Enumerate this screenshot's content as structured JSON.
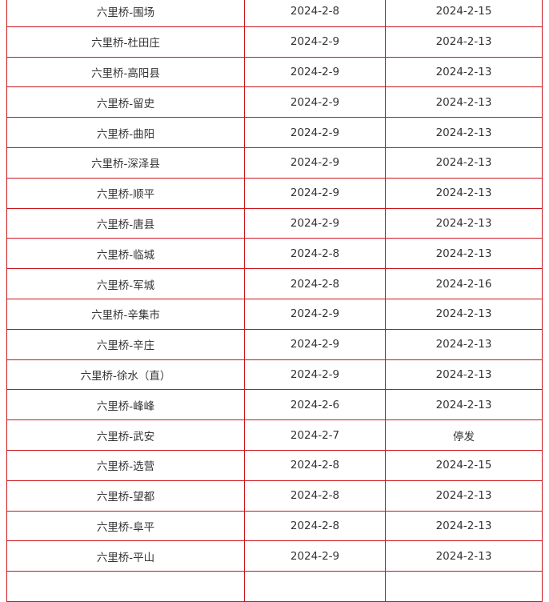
{
  "rows": [
    {
      "route": "六里桥-围场",
      "stop_date": "2024-2-8",
      "resume_date": "2024-2-15"
    },
    {
      "route": "六里桥-杜田庄",
      "stop_date": "2024-2-9",
      "resume_date": "2024-2-13"
    },
    {
      "route": "六里桥-高阳县",
      "stop_date": "2024-2-9",
      "resume_date": "2024-2-13"
    },
    {
      "route": "六里桥-留史",
      "stop_date": "2024-2-9",
      "resume_date": "2024-2-13"
    },
    {
      "route": "六里桥-曲阳",
      "stop_date": "2024-2-9",
      "resume_date": "2024-2-13"
    },
    {
      "route": "六里桥-深泽县",
      "stop_date": "2024-2-9",
      "resume_date": "2024-2-13"
    },
    {
      "route": "六里桥-顺平",
      "stop_date": "2024-2-9",
      "resume_date": "2024-2-13"
    },
    {
      "route": "六里桥-唐县",
      "stop_date": "2024-2-9",
      "resume_date": "2024-2-13"
    },
    {
      "route": "六里桥-临城",
      "stop_date": "2024-2-8",
      "resume_date": "2024-2-13"
    },
    {
      "route": "六里桥-军城",
      "stop_date": "2024-2-8",
      "resume_date": "2024-2-16"
    },
    {
      "route": "六里桥-辛集市",
      "stop_date": "2024-2-9",
      "resume_date": "2024-2-13"
    },
    {
      "route": "六里桥-辛庄",
      "stop_date": "2024-2-9",
      "resume_date": "2024-2-13"
    },
    {
      "route": "六里桥-徐水（直）",
      "stop_date": "2024-2-9",
      "resume_date": "2024-2-13"
    },
    {
      "route": "六里桥-峰峰",
      "stop_date": "2024-2-6",
      "resume_date": "2024-2-13"
    },
    {
      "route": "六里桥-武安",
      "stop_date": "2024-2-7",
      "resume_date": "停发"
    },
    {
      "route": "六里桥-选营",
      "stop_date": "2024-2-8",
      "resume_date": "2024-2-15"
    },
    {
      "route": "六里桥-望都",
      "stop_date": "2024-2-8",
      "resume_date": "2024-2-13"
    },
    {
      "route": "六里桥-阜平",
      "stop_date": "2024-2-8",
      "resume_date": "2024-2-13"
    },
    {
      "route": "六里桥-平山",
      "stop_date": "2024-2-9",
      "resume_date": "2024-2-13"
    }
  ],
  "border_color": "#c8161d"
}
